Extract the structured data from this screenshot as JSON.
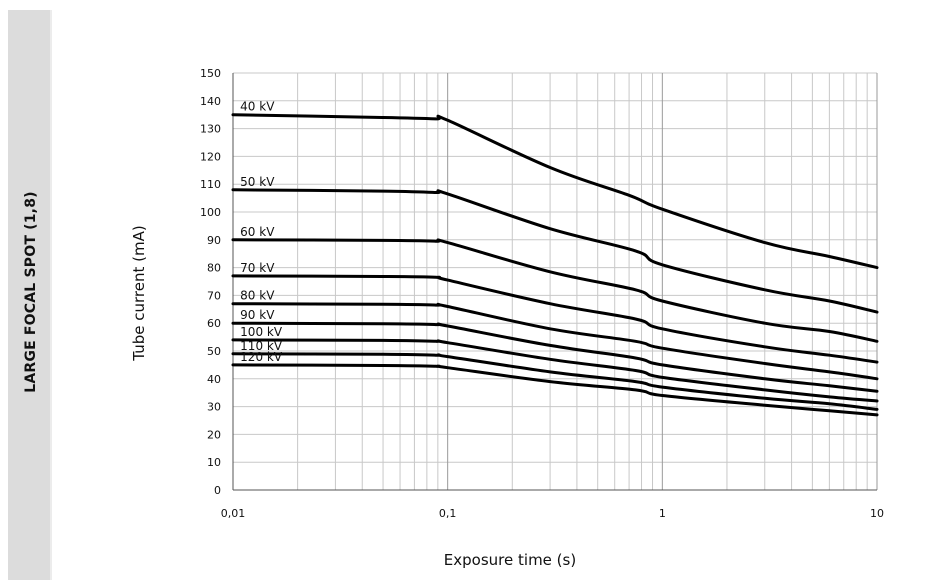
{
  "side_label": "LARGE FOCAL SPOT (1,8)",
  "chart_data": {
    "type": "line",
    "title": "",
    "xlabel": "Exposure time (s)",
    "ylabel": "Tube current (mA)",
    "xscale": "log",
    "xlim": [
      0.01,
      10
    ],
    "ylim": [
      0,
      150
    ],
    "grid": true,
    "x_ticks": [
      "0,01",
      "0,1",
      "1",
      "10"
    ],
    "y_ticks": [
      "0",
      "10",
      "20",
      "30",
      "40",
      "50",
      "60",
      "70",
      "80",
      "90",
      "100",
      "110",
      "120",
      "130",
      "140",
      "150"
    ],
    "line_color": "#000000",
    "series": [
      {
        "name": "40 kV",
        "x": [
          0.01,
          0.05,
          0.088,
          0.1,
          0.3,
          0.7,
          1,
          3,
          6,
          10
        ],
        "y": [
          135,
          134,
          133.5,
          133,
          116,
          106,
          101,
          89,
          84,
          80
        ]
      },
      {
        "name": "50 kV",
        "x": [
          0.01,
          0.05,
          0.088,
          0.1,
          0.3,
          0.75,
          1,
          3,
          6,
          10
        ],
        "y": [
          108,
          107.5,
          107,
          106.5,
          94,
          86,
          81,
          72,
          68,
          64
        ]
      },
      {
        "name": "60 kV",
        "x": [
          0.01,
          0.05,
          0.088,
          0.1,
          0.3,
          0.75,
          1,
          3,
          6,
          10
        ],
        "y": [
          90,
          89.8,
          89.5,
          89,
          78.5,
          72,
          68,
          60,
          57,
          53.5
        ]
      },
      {
        "name": "70 kV",
        "x": [
          0.01,
          0.05,
          0.088,
          0.1,
          0.3,
          0.75,
          1,
          3,
          6,
          10
        ],
        "y": [
          77,
          76.8,
          76.5,
          75.5,
          67,
          61.5,
          58,
          51.5,
          48.5,
          46
        ]
      },
      {
        "name": "80 kV",
        "x": [
          0.01,
          0.05,
          0.088,
          0.1,
          0.3,
          0.75,
          1,
          3,
          6,
          10
        ],
        "y": [
          67,
          66.8,
          66.5,
          66,
          58,
          53.5,
          51,
          45.5,
          42.5,
          40
        ]
      },
      {
        "name": "90 kV",
        "x": [
          0.01,
          0.05,
          0.088,
          0.1,
          0.3,
          0.75,
          1,
          3,
          6,
          10
        ],
        "y": [
          60,
          59.8,
          59.5,
          59,
          52,
          47.5,
          45,
          40,
          37.5,
          35.5
        ]
      },
      {
        "name": "100 kV",
        "x": [
          0.01,
          0.05,
          0.088,
          0.1,
          0.3,
          0.75,
          1,
          3,
          6,
          10
        ],
        "y": [
          54,
          53.8,
          53.5,
          53,
          47,
          43,
          40.5,
          36,
          33.5,
          32
        ]
      },
      {
        "name": "110 kV",
        "x": [
          0.01,
          0.05,
          0.088,
          0.1,
          0.3,
          0.75,
          1,
          3,
          6,
          10
        ],
        "y": [
          49,
          48.8,
          48.5,
          48,
          42.5,
          39,
          37,
          33,
          31,
          29
        ]
      },
      {
        "name": "120 kV",
        "x": [
          0.01,
          0.05,
          0.088,
          0.1,
          0.3,
          0.75,
          1,
          3,
          6,
          10
        ],
        "y": [
          45,
          44.8,
          44.5,
          44,
          39,
          36,
          34,
          30.5,
          28.5,
          27
        ]
      }
    ]
  }
}
